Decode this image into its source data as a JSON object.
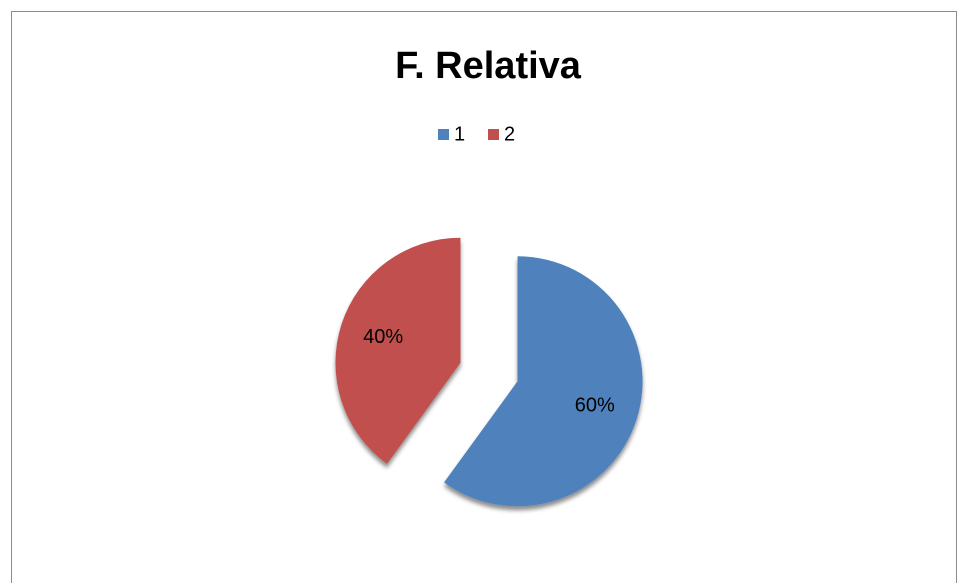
{
  "chart_data": {
    "type": "pie",
    "title": "F. Relativa",
    "categories": [
      "1",
      "2"
    ],
    "values": [
      60,
      40
    ],
    "value_labels": [
      "60%",
      "40%"
    ],
    "colors": [
      "#4f81bd",
      "#c0504d"
    ],
    "legend": "top",
    "exploded": true
  }
}
